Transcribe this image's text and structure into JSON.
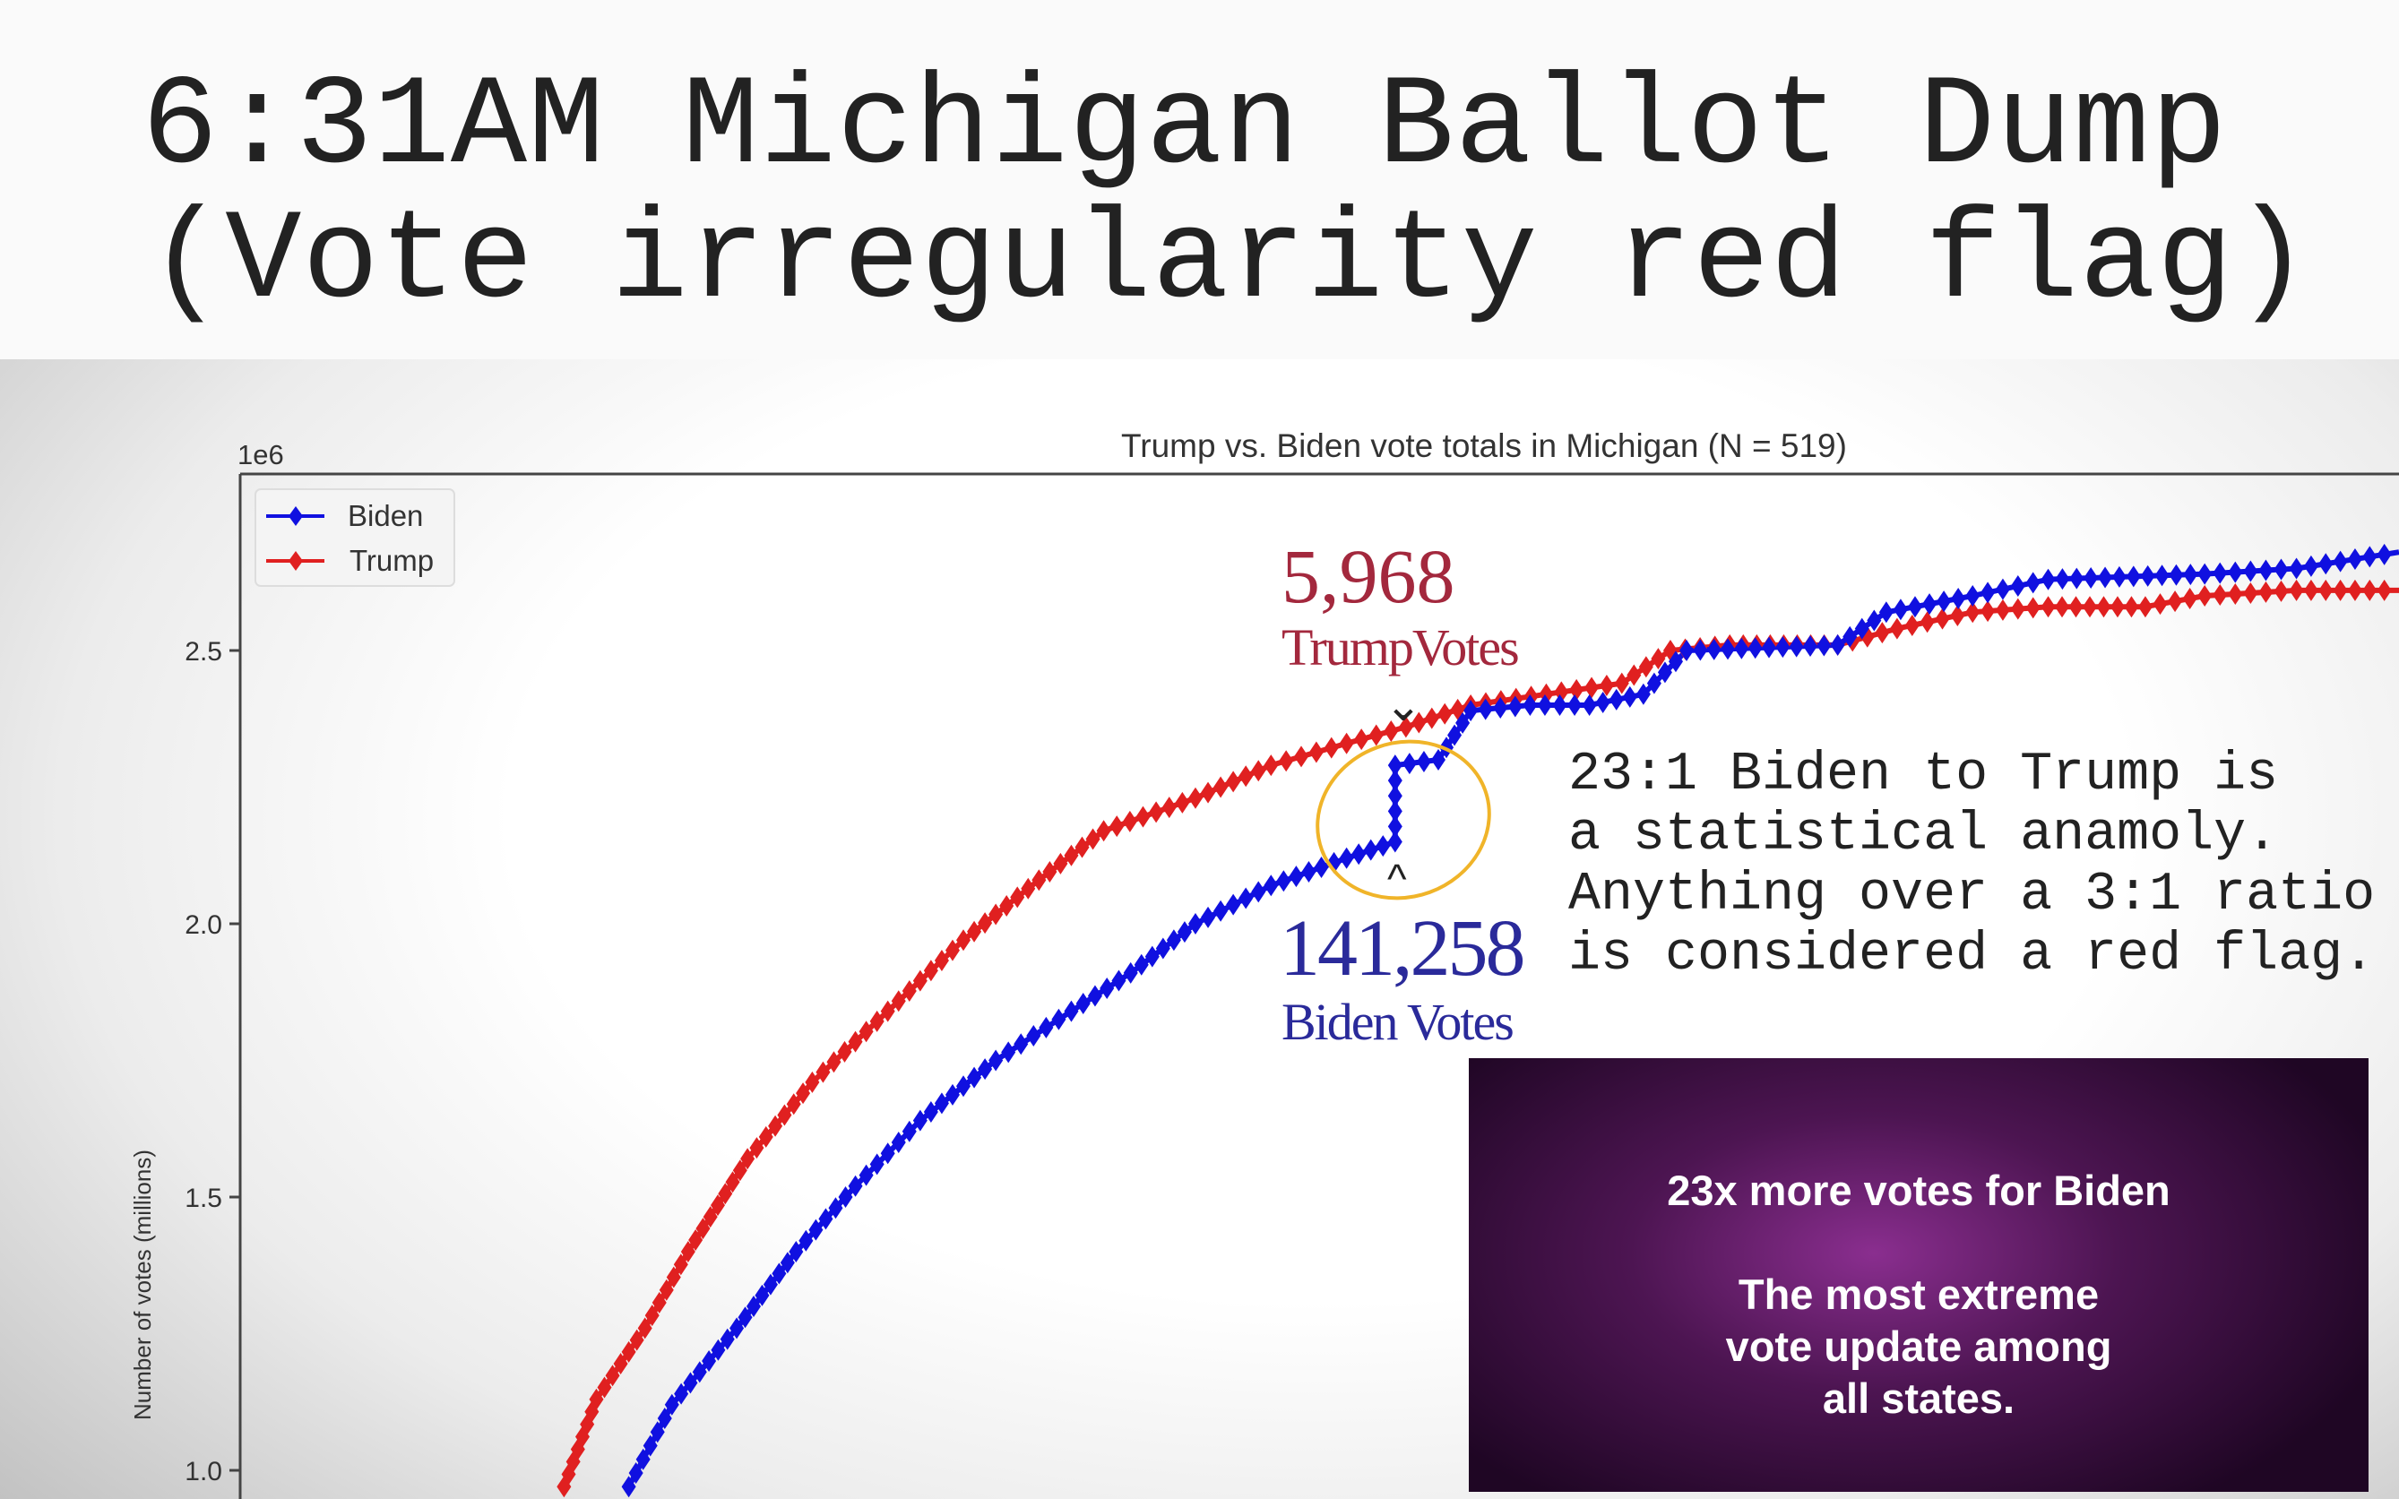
{
  "headline": {
    "line1": "6:31AM Michigan Ballot Dump",
    "line2": "(Vote irregularity red flag)"
  },
  "annotations": {
    "trump_count": "5,968",
    "trump_label": "TrumpVotes",
    "biden_count": "141,258",
    "biden_label": "Biden Votes",
    "down_arrow": "⌄",
    "up_arrow": "^",
    "note_lines": [
      "23:1 Biden to Trump is",
      "a statistical anamoly.",
      "Anything over a 3:1 ratio",
      "is considered a red flag."
    ],
    "circle_color": "#f0b429"
  },
  "video_box": {
    "line1": "23x more votes for Biden",
    "line2": "The most extreme",
    "line3": "vote update among",
    "line4": "all states."
  },
  "chart_data": {
    "type": "line",
    "title": "Trump vs. Biden vote totals in Michigan (N = 519)",
    "xlabel": "",
    "ylabel": "Number of votes (millions)",
    "y_multiplier": "1e6",
    "ylim": [
      0.95,
      2.82
    ],
    "xlim": [
      0,
      400
    ],
    "yticks": [
      1.0,
      1.5,
      2.0,
      2.5
    ],
    "ytick_labels": [
      "1.0",
      "1.5",
      "2.0",
      "2.5"
    ],
    "legend": {
      "placement": "top-left",
      "entries": [
        "Biden",
        "Trump"
      ]
    },
    "series": [
      {
        "name": "Biden",
        "color": "#1010e0",
        "x": [
          72,
          80,
          92,
          103,
          114,
          126,
          140,
          154,
          165,
          177,
          191,
          205,
          214,
          214,
          222,
          228,
          239,
          250,
          260,
          268,
          296,
          305,
          321,
          335,
          364,
          381,
          400
        ],
        "y": [
          0.97,
          1.12,
          1.26,
          1.4,
          1.52,
          1.64,
          1.75,
          1.84,
          1.91,
          2.0,
          2.07,
          2.12,
          2.15,
          2.29,
          2.3,
          2.39,
          2.4,
          2.4,
          2.42,
          2.5,
          2.51,
          2.57,
          2.6,
          2.63,
          2.64,
          2.65,
          2.68
        ]
      },
      {
        "name": "Trump",
        "color": "#e02020",
        "x": [
          60,
          66,
          75,
          83,
          94,
          106,
          120,
          134,
          148,
          160,
          177,
          191,
          205,
          216,
          228,
          242,
          256,
          265,
          276,
          296,
          307,
          321,
          335,
          353,
          364,
          381,
          400
        ],
        "y": [
          0.97,
          1.13,
          1.26,
          1.4,
          1.57,
          1.71,
          1.84,
          1.97,
          2.08,
          2.17,
          2.23,
          2.29,
          2.33,
          2.36,
          2.4,
          2.42,
          2.44,
          2.5,
          2.51,
          2.51,
          2.54,
          2.57,
          2.58,
          2.58,
          2.6,
          2.61,
          2.61
        ]
      }
    ]
  }
}
